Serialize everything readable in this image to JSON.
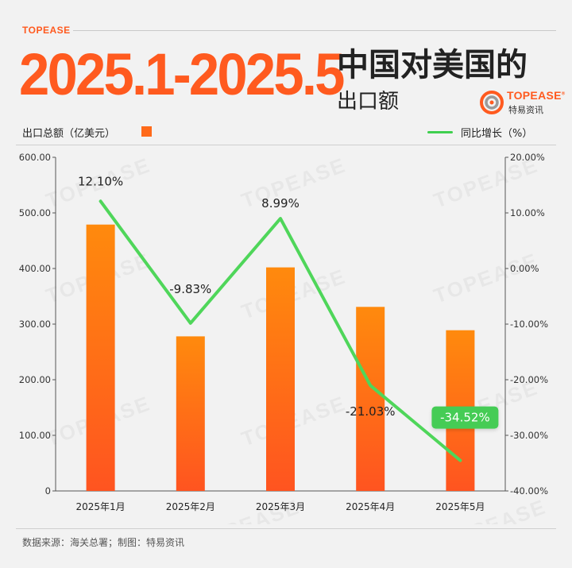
{
  "header": {
    "brand": "TOPEASE",
    "date_range": "2025.1-2025.5",
    "title": "中国对美国的",
    "subtitle": "出口额"
  },
  "logo": {
    "name": "TOPEASE",
    "registered": "®",
    "cn_name": "特易资讯"
  },
  "legend": {
    "bar_label": "出口总额（亿美元）",
    "line_label": "同比增长（%）"
  },
  "watermark": "TOPEASE",
  "footer": {
    "source": "数据来源：海关总署；制图：特易资讯"
  },
  "colors": {
    "bar_top": "#ff8a0d",
    "bar_bottom": "#ff5420",
    "line": "#4fd65a",
    "highlight_badge": "#44cc55",
    "brand_orange": "#ff5a1f"
  },
  "chart_data": {
    "type": "bar",
    "categories": [
      "2025年1月",
      "2025年2月",
      "2025年3月",
      "2025年4月",
      "2025年5月"
    ],
    "series": [
      {
        "name": "出口总额（亿美元）",
        "type": "bar",
        "axis": "left",
        "values": [
          479,
          278,
          402,
          331,
          289
        ]
      },
      {
        "name": "同比增长（%）",
        "type": "line",
        "axis": "right",
        "values": [
          12.1,
          -9.83,
          8.99,
          -21.03,
          -34.52
        ],
        "labels": [
          "12.10%",
          "-9.83%",
          "8.99%",
          "-21.03%",
          "-34.52%"
        ],
        "highlight_index": 4
      }
    ],
    "ylim_left": [
      0,
      600
    ],
    "yticks_left": [
      "0",
      "100.00",
      "200.00",
      "300.00",
      "400.00",
      "500.00",
      "600.00"
    ],
    "ylim_right": [
      -40,
      20
    ],
    "yticks_right": [
      "-40.00%",
      "-30.00%",
      "-20.00%",
      "-10.00%",
      "0.00%",
      "10.00%",
      "20.00%"
    ],
    "grid": false,
    "legend_position": "top"
  }
}
